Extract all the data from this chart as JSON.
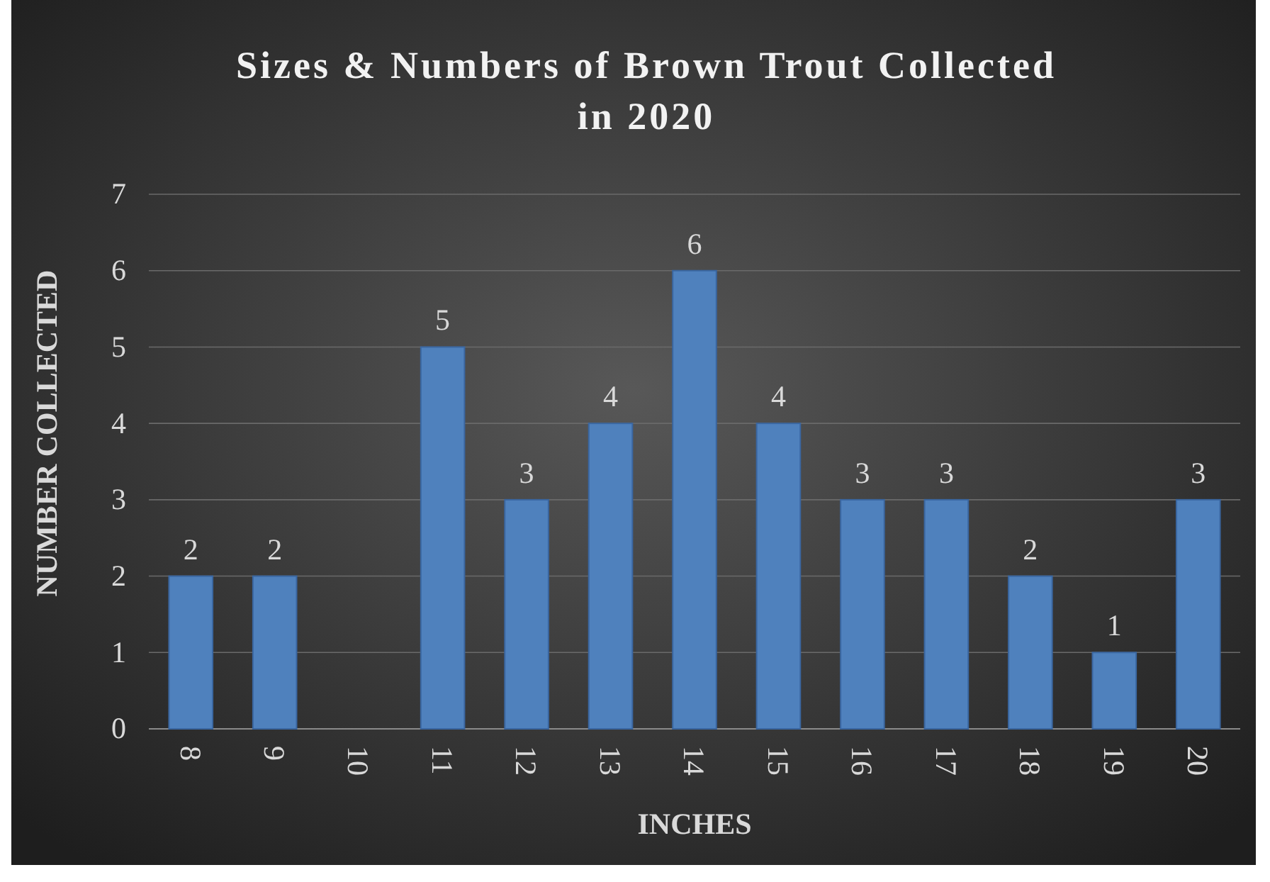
{
  "chart_data": {
    "type": "bar",
    "title": "Sizes & Numbers of Brown Trout Collected in 2020",
    "xlabel": "INCHES",
    "ylabel": "NUMBER COLLECTED",
    "categories": [
      "8",
      "9",
      "10",
      "11",
      "12",
      "13",
      "14",
      "15",
      "16",
      "17",
      "18",
      "19",
      "20"
    ],
    "values": [
      2,
      2,
      0,
      5,
      3,
      4,
      6,
      4,
      3,
      3,
      2,
      1,
      3
    ],
    "value_labels": [
      "2",
      "2",
      null,
      "5",
      "3",
      "4",
      "6",
      "4",
      "3",
      "3",
      "2",
      "1",
      "3"
    ],
    "color": "#4f81bd",
    "ylim": [
      0,
      7
    ],
    "yticks": [
      0,
      1,
      2,
      3,
      4,
      5,
      6,
      7
    ],
    "grid": "y"
  }
}
